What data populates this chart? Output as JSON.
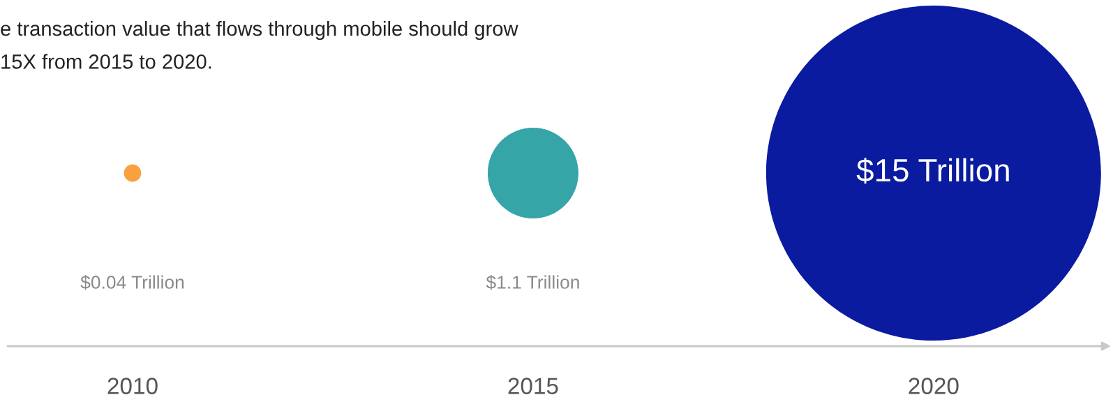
{
  "chart_data": {
    "type": "other",
    "subtitle": "e transaction value that flows through mobile should grow\n15X from 2015 to 2020.",
    "categories": [
      "2010",
      "2015",
      "2020"
    ],
    "values": [
      0.04,
      1.1,
      15
    ],
    "colors": [
      "#f9a040",
      "#35a5a8",
      "#0a1ba0"
    ],
    "value_labels": [
      "$0.04 Trillion",
      "$1.1 Trillion",
      "$15 Trillion"
    ]
  }
}
